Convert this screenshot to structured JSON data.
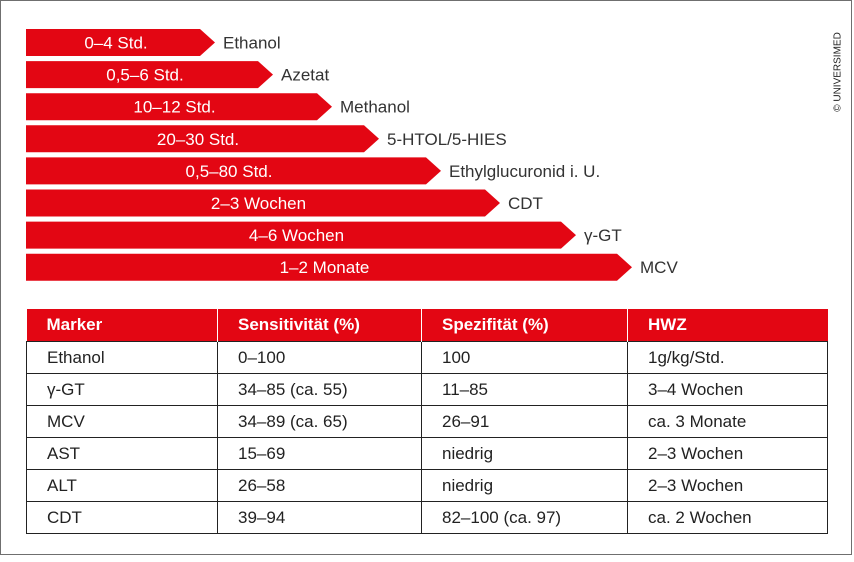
{
  "chart_data": {
    "type": "bar",
    "orientation": "horizontal",
    "colors": {
      "bar": "#e30613",
      "bar_text": "#ffffff",
      "label_text": "#333333"
    },
    "bars": [
      {
        "range": "0–4 Std.",
        "marker": "Ethanol"
      },
      {
        "range": "0,5–6 Std.",
        "marker": "Azetat"
      },
      {
        "range": "10–12 Std.",
        "marker": "Methanol"
      },
      {
        "range": "20–30 Std.",
        "marker": "5-HTOL/5-HIES"
      },
      {
        "range": "0,5–80 Std.",
        "marker": "Ethylglucuronid i. U."
      },
      {
        "range": "2–3 Wochen",
        "marker": "CDT"
      },
      {
        "range": "4–6 Wochen",
        "marker": "γ-GT"
      },
      {
        "range": "1–2 Monate",
        "marker": "MCV"
      }
    ]
  },
  "copyright": "© UNIVERSIMED",
  "table": {
    "header_color": "#e30613",
    "headers": [
      "Marker",
      "Sensitivität (%)",
      "Spezifität (%)",
      "HWZ"
    ],
    "rows": [
      [
        "Ethanol",
        "0–100",
        "100",
        "1g/kg/Std."
      ],
      [
        "γ-GT",
        "34–85 (ca. 55)",
        "11–85",
        "3–4 Wochen"
      ],
      [
        "MCV",
        "34–89 (ca. 65)",
        "26–91",
        "ca. 3 Monate"
      ],
      [
        "AST",
        "15–69",
        "niedrig",
        "2–3 Wochen"
      ],
      [
        "ALT",
        "26–58",
        "niedrig",
        "2–3 Wochen"
      ],
      [
        "CDT",
        "39–94",
        "82–100 (ca. 97)",
        "ca. 2 Wochen"
      ]
    ]
  }
}
